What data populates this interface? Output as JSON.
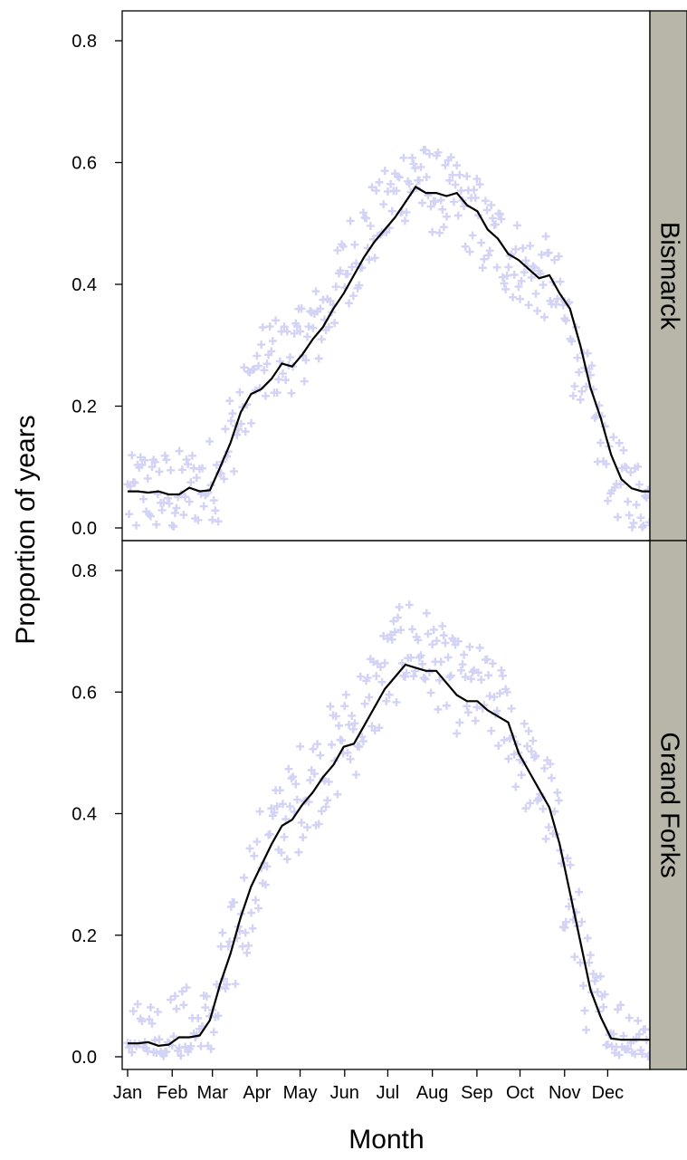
{
  "chart_data": {
    "type": "scatter",
    "xlabel": "Month",
    "ylabel": "Proportion of years",
    "months": [
      "Jan",
      "Feb",
      "Mar",
      "Apr",
      "May",
      "Jun",
      "Jul",
      "Aug",
      "Sep",
      "Oct",
      "Nov",
      "Dec"
    ],
    "ylim": [
      0,
      0.85
    ],
    "yticks": [
      "0.0",
      "0.2",
      "0.4",
      "0.6",
      "0.8"
    ],
    "colors": {
      "points": "#d3d3f5",
      "line": "#000000",
      "strip": "#b7b6a9"
    },
    "panels": [
      {
        "name": "Bismarck",
        "smooth_week_values": [
          0.06,
          0.06,
          0.058,
          0.06,
          0.055,
          0.055,
          0.066,
          0.06,
          0.062,
          0.1,
          0.14,
          0.19,
          0.22,
          0.228,
          0.245,
          0.27,
          0.265,
          0.285,
          0.31,
          0.33,
          0.36,
          0.385,
          0.415,
          0.445,
          0.47,
          0.49,
          0.51,
          0.535,
          0.56,
          0.55,
          0.55,
          0.545,
          0.55,
          0.53,
          0.52,
          0.49,
          0.475,
          0.45,
          0.44,
          0.425,
          0.41,
          0.415,
          0.385,
          0.36,
          0.3,
          0.23,
          0.18,
          0.12,
          0.08,
          0.065,
          0.06,
          0.06
        ],
        "scatter_base": [
          0.05,
          0.07,
          0.06,
          0.06,
          0.05,
          0.06,
          0.07,
          0.07,
          0.08,
          0.12,
          0.16,
          0.2,
          0.24,
          0.26,
          0.28,
          0.28,
          0.29,
          0.31,
          0.33,
          0.35,
          0.39,
          0.42,
          0.45,
          0.48,
          0.5,
          0.52,
          0.55,
          0.57,
          0.58,
          0.56,
          0.55,
          0.54,
          0.54,
          0.52,
          0.51,
          0.48,
          0.47,
          0.45,
          0.44,
          0.42,
          0.41,
          0.41,
          0.38,
          0.34,
          0.28,
          0.22,
          0.16,
          0.11,
          0.08,
          0.06,
          0.05,
          0.04
        ],
        "scatter_spread": 0.07
      },
      {
        "name": "Grand Forks",
        "smooth_week_values": [
          0.022,
          0.022,
          0.024,
          0.018,
          0.02,
          0.032,
          0.032,
          0.035,
          0.06,
          0.12,
          0.17,
          0.23,
          0.28,
          0.315,
          0.35,
          0.38,
          0.39,
          0.415,
          0.435,
          0.46,
          0.48,
          0.51,
          0.515,
          0.545,
          0.575,
          0.605,
          0.625,
          0.645,
          0.64,
          0.635,
          0.635,
          0.615,
          0.595,
          0.585,
          0.585,
          0.57,
          0.56,
          0.55,
          0.5,
          0.47,
          0.44,
          0.41,
          0.35,
          0.27,
          0.19,
          0.11,
          0.065,
          0.03,
          0.028,
          0.028,
          0.028,
          0.028
        ],
        "scatter_base": [
          0.02,
          0.03,
          0.03,
          0.02,
          0.03,
          0.04,
          0.04,
          0.04,
          0.07,
          0.13,
          0.18,
          0.24,
          0.29,
          0.33,
          0.37,
          0.4,
          0.41,
          0.44,
          0.46,
          0.48,
          0.5,
          0.53,
          0.54,
          0.57,
          0.6,
          0.63,
          0.66,
          0.68,
          0.67,
          0.66,
          0.65,
          0.63,
          0.61,
          0.6,
          0.6,
          0.59,
          0.57,
          0.56,
          0.51,
          0.48,
          0.45,
          0.42,
          0.36,
          0.28,
          0.2,
          0.12,
          0.07,
          0.04,
          0.03,
          0.03,
          0.03,
          0.03
        ],
        "scatter_spread": 0.08
      }
    ]
  }
}
